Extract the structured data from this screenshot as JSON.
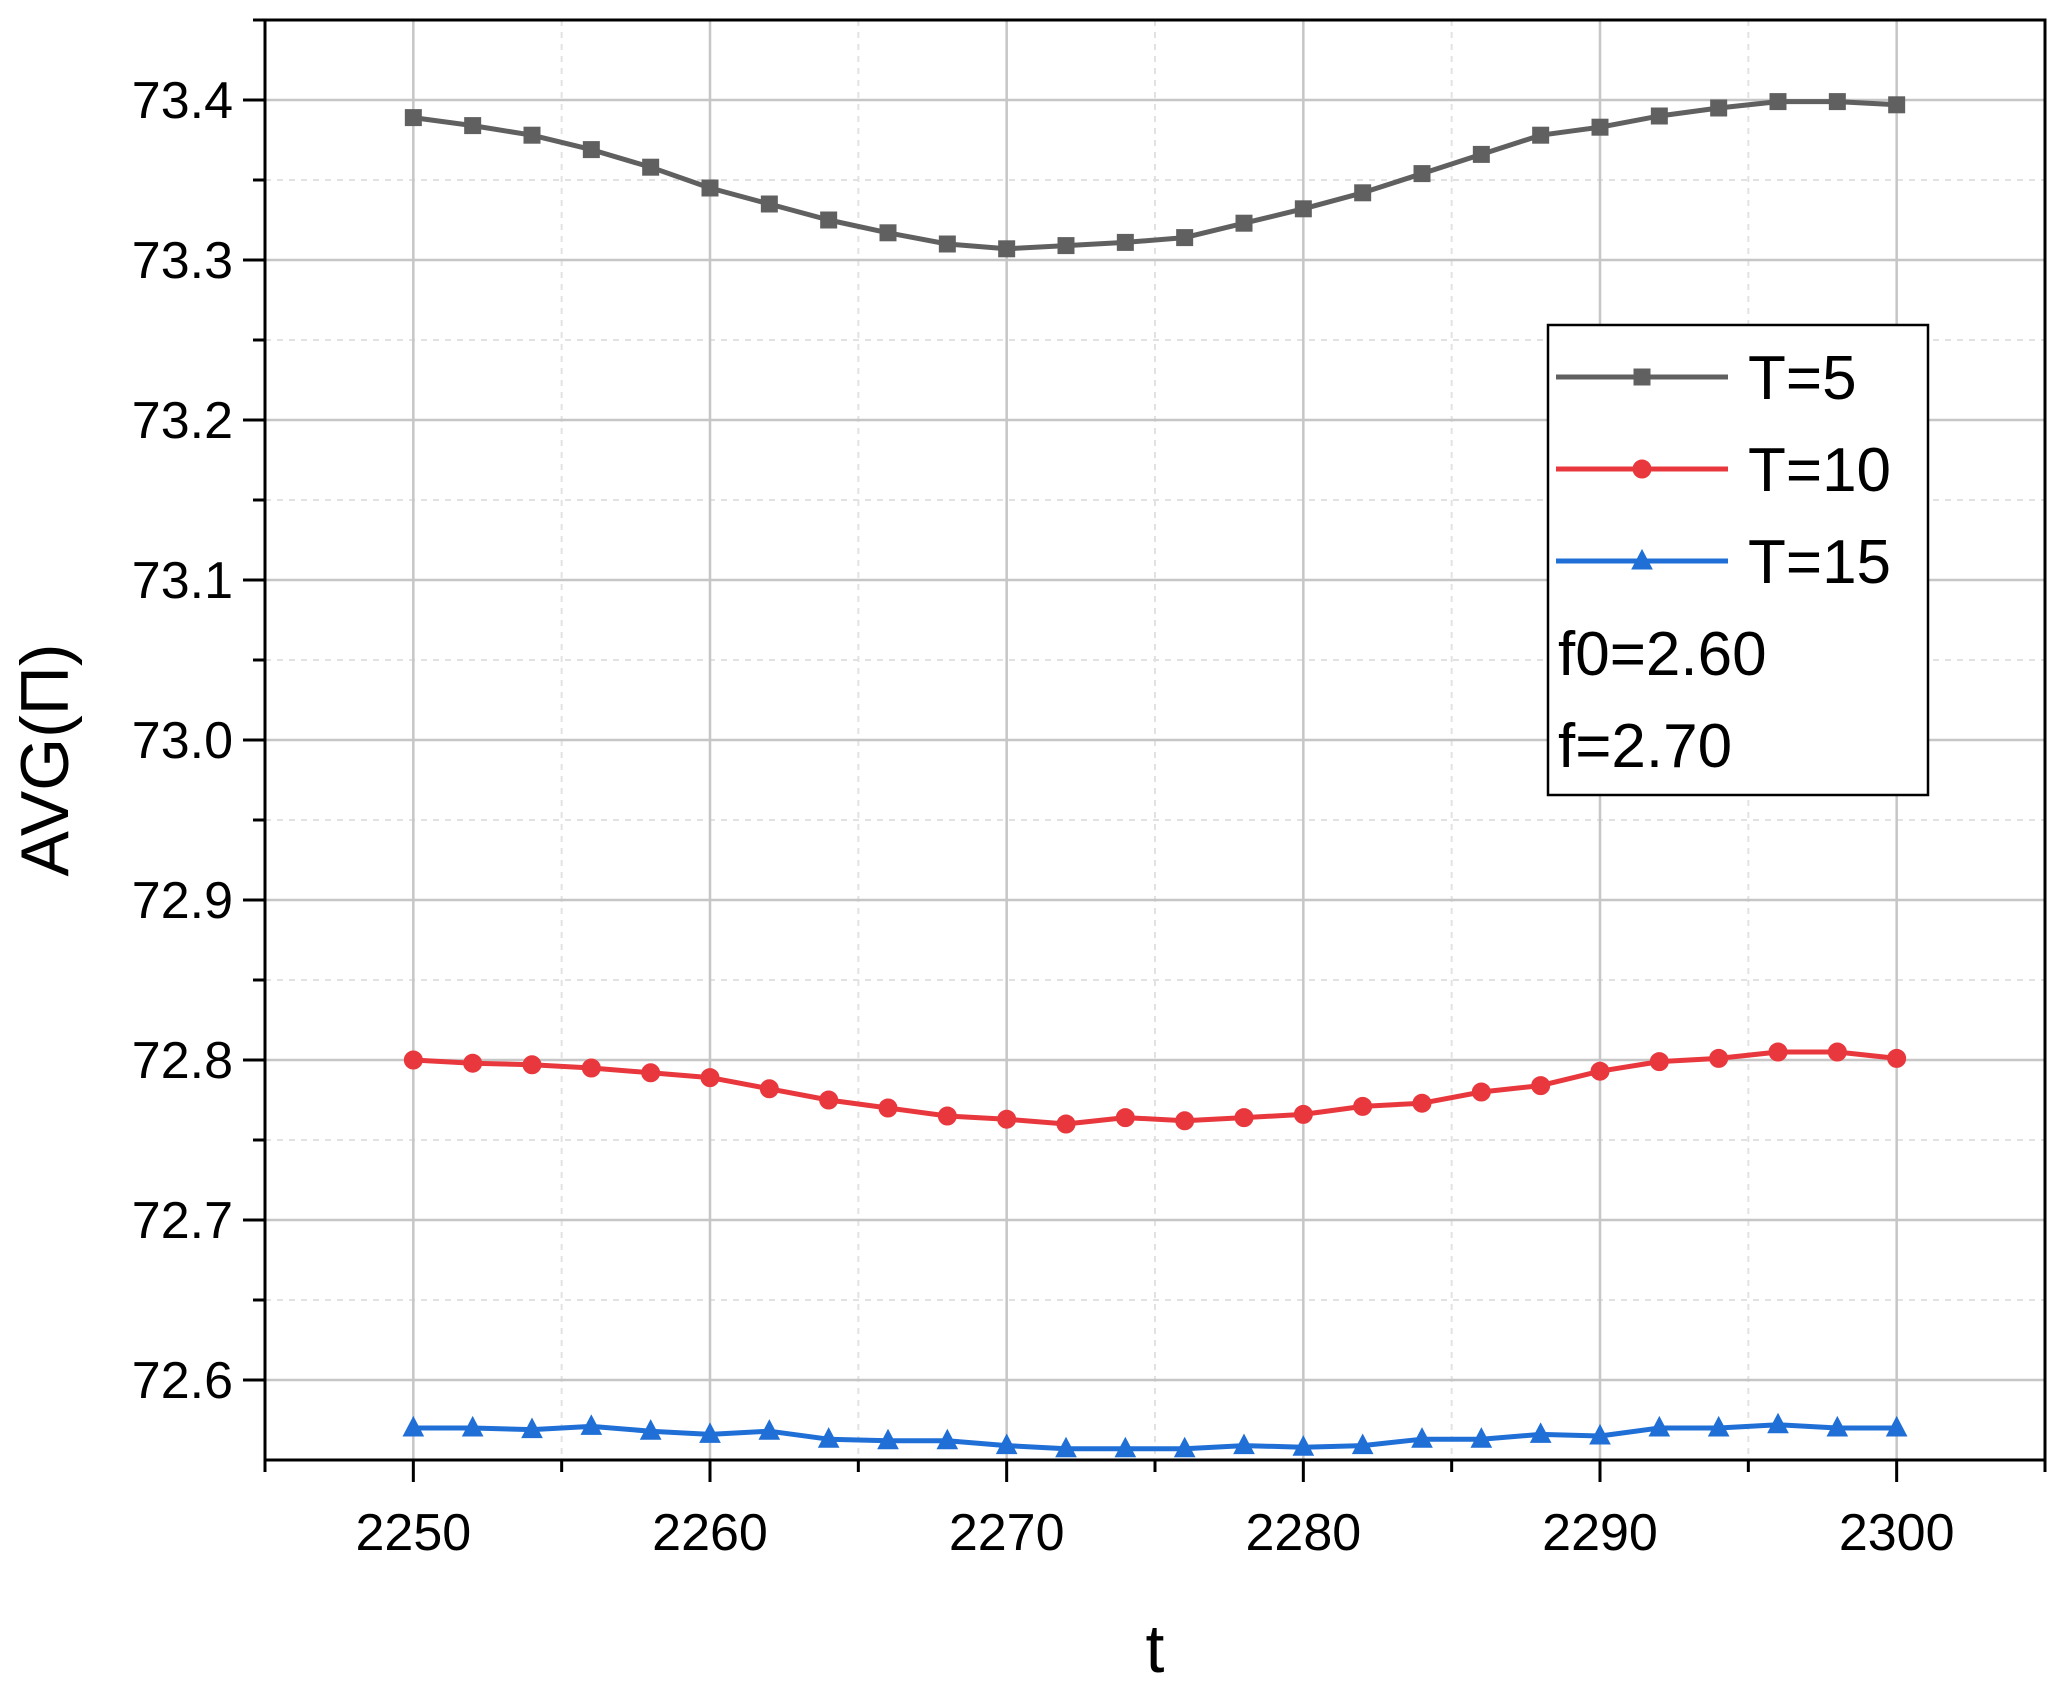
{
  "chart_data": {
    "type": "line",
    "xlabel": "t",
    "ylabel": "AVG(Π)",
    "xlim": [
      2245,
      2305
    ],
    "ylim": [
      72.55,
      73.45
    ],
    "x_ticks": [
      2250,
      2260,
      2270,
      2280,
      2290,
      2300
    ],
    "x_tick_labels": [
      "2250",
      "2260",
      "2270",
      "2280",
      "2290",
      "2300"
    ],
    "y_ticks": [
      72.6,
      72.7,
      72.8,
      72.9,
      73.0,
      73.1,
      73.2,
      73.3,
      73.4
    ],
    "y_tick_labels": [
      "72.6",
      "72.7",
      "72.8",
      "72.9",
      "73.0",
      "73.1",
      "73.2",
      "73.3",
      "73.4"
    ],
    "grid": true,
    "legend_position": "top-right",
    "x": [
      2250,
      2252,
      2254,
      2256,
      2258,
      2260,
      2262,
      2264,
      2266,
      2268,
      2270,
      2272,
      2274,
      2276,
      2278,
      2280,
      2282,
      2284,
      2286,
      2288,
      2290,
      2292,
      2294,
      2296,
      2298,
      2300
    ],
    "series": [
      {
        "name": "T=5",
        "color": "#606060",
        "marker": "square",
        "values": [
          73.389,
          73.384,
          73.378,
          73.369,
          73.358,
          73.345,
          73.335,
          73.325,
          73.317,
          73.31,
          73.307,
          73.309,
          73.311,
          73.314,
          73.323,
          73.332,
          73.342,
          73.354,
          73.366,
          73.378,
          73.383,
          73.39,
          73.395,
          73.399,
          73.399,
          73.397
        ]
      },
      {
        "name": "T=10",
        "color": "#e8383d",
        "marker": "circle",
        "values": [
          72.8,
          72.798,
          72.797,
          72.795,
          72.792,
          72.789,
          72.782,
          72.775,
          72.77,
          72.765,
          72.763,
          72.76,
          72.764,
          72.762,
          72.764,
          72.766,
          72.771,
          72.773,
          72.78,
          72.784,
          72.793,
          72.799,
          72.801,
          72.805,
          72.805,
          72.801
        ]
      },
      {
        "name": "T=15",
        "color": "#1f6fd6",
        "marker": "triangle",
        "values": [
          72.57,
          72.57,
          72.569,
          72.571,
          72.568,
          72.566,
          72.568,
          72.563,
          72.562,
          72.562,
          72.559,
          72.557,
          72.557,
          72.557,
          72.559,
          72.558,
          72.559,
          72.563,
          72.563,
          72.566,
          72.565,
          72.57,
          72.57,
          72.572,
          72.57,
          72.57
        ]
      }
    ],
    "legend_notes": [
      "f0=2.60",
      "f=2.70"
    ]
  }
}
